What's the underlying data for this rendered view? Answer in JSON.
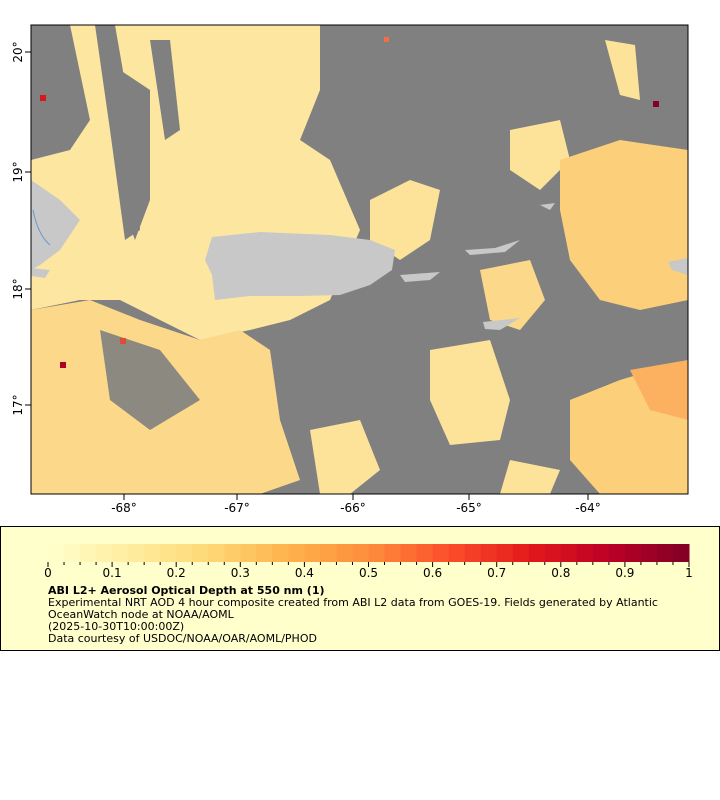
{
  "map": {
    "lon_ticks": [
      "-68°",
      "-67°",
      "-66°",
      "-65°",
      "-64°"
    ],
    "lat_ticks": [
      "20°",
      "19°",
      "18°",
      "17°"
    ],
    "lon_range": [
      -68.8,
      -63.15
    ],
    "lat_range": [
      16.35,
      20.23
    ],
    "colors": {
      "no_data": "#808080",
      "land": "#c8c8c8",
      "water_line": "#6699cc"
    }
  },
  "legend": {
    "colorbar_ticks": [
      "0",
      "0.1",
      "0.2",
      "0.3",
      "0.4",
      "0.5",
      "0.6",
      "0.7",
      "0.8",
      "0.9",
      "1"
    ],
    "range": [
      0,
      1
    ],
    "colormap_start": "#ffffcc",
    "colormap_end": "#800026",
    "title": "ABI L2+ Aerosol Optical Depth at 550 nm (1)",
    "description_line1": "Experimental NRT AOD 4 hour composite created from ABI L2 data from GOES-19. Fields generated by Atlantic",
    "description_line2": "OceanWatch node at NOAA/AOML",
    "time": "(2025-10-30T10:00:00Z)",
    "credit": "Data courtesy of USDOC/NOAA/OAR/AOML/PHOD"
  }
}
